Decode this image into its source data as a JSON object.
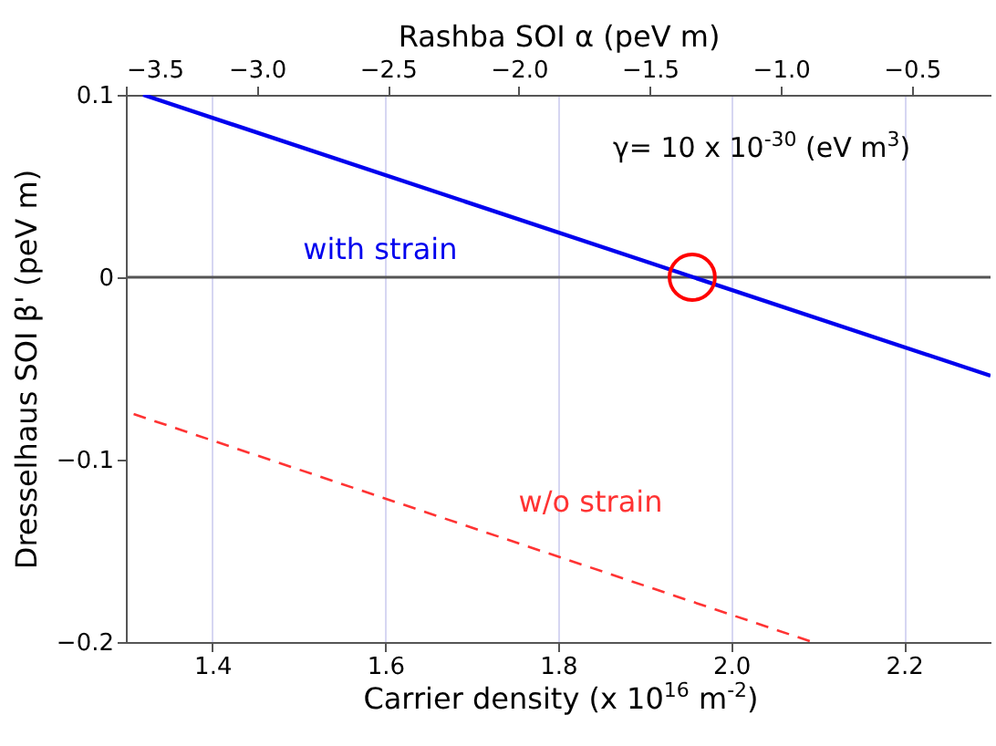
{
  "chart_data": {
    "type": "line",
    "xlabel": "Carrier density (x 10$^{16}$ m$^{-2}$)",
    "ylabel": "Dresselhaus SOI β' (peV m)",
    "x2label": "Rashba SOI α (peV m)",
    "xlim": [
      1.3,
      2.3
    ],
    "xticks": [
      1.4,
      1.6,
      1.8,
      {
        "value": 2,
        "label": "2.0"
      },
      2.2
    ],
    "x2lim": [
      -3.5,
      -0.2
    ],
    "x2ticks": [
      -3.5,
      {
        "value": -3,
        "label": "−3.0"
      },
      -2.5,
      {
        "value": -2,
        "label": "−2.0"
      },
      -1.5,
      {
        "value": -1,
        "label": "−1.0"
      },
      -0.5
    ],
    "ylim": [
      -0.2,
      0.1
    ],
    "yticks": [
      -0.2,
      -0.1,
      0,
      0.1
    ],
    "grid": "x",
    "series": [
      {
        "name": "with strain",
        "color": "#0000ee",
        "line_style": "solid",
        "marker": "none",
        "x": [
          1.32,
          2.3
        ],
        "values": [
          0.1,
          -0.054
        ]
      },
      {
        "name": "w/o strain",
        "color": "#ff3333",
        "line_style": "dashed",
        "marker": "none",
        "x": [
          1.309,
          2.094
        ],
        "values": [
          -0.075,
          -0.2
        ]
      },
      {
        "type": "scatter",
        "color": "#ff0000",
        "marker": "circle",
        "x": [
          1.955
        ],
        "values": [
          0
        ]
      }
    ],
    "ref_lines": [
      {
        "axis": "y",
        "value": 0,
        "color": "#555555"
      }
    ],
    "annotations": [
      "γ= 10 x 10$^{-30}$ (eV m$^{3}$)"
    ]
  }
}
